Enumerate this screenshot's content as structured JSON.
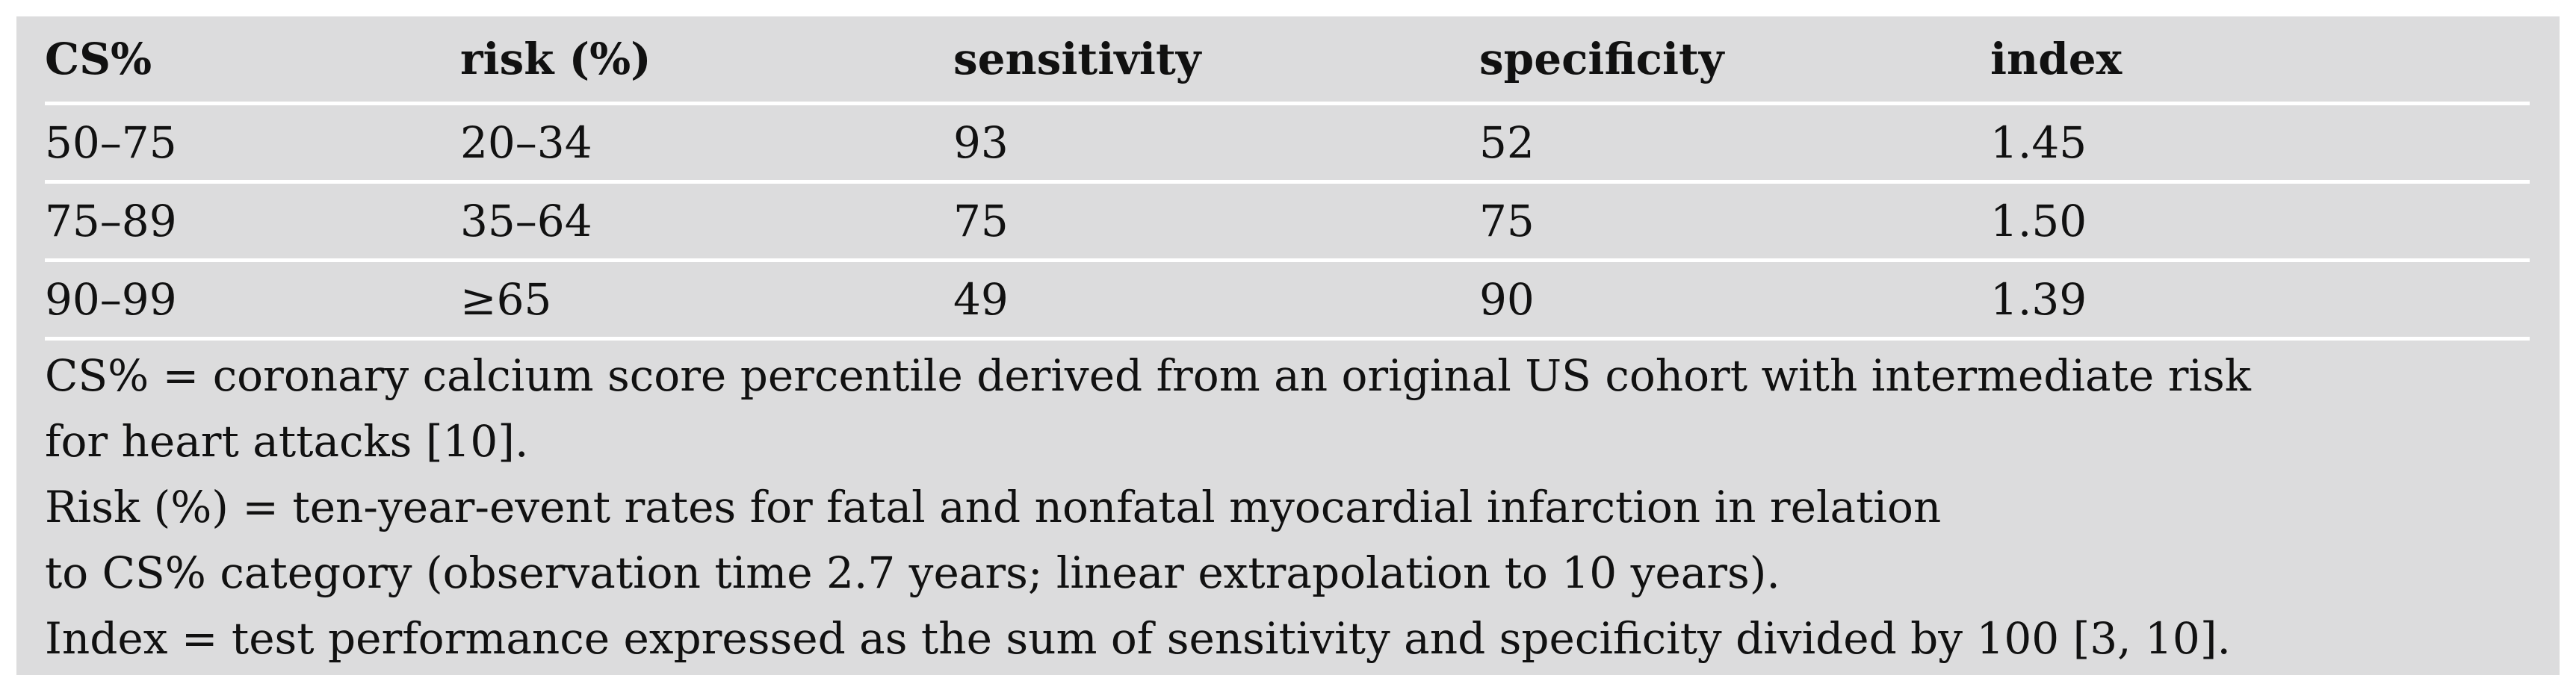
{
  "table": {
    "headers": [
      "CS%",
      "risk (%)",
      "sensitivity",
      "specificity",
      "index"
    ],
    "rows": [
      [
        "50–75",
        "20–34",
        "93",
        "52",
        "1.45"
      ],
      [
        "75–89",
        "35–64",
        "75",
        "75",
        "1.50"
      ],
      [
        "90–99",
        "≥65",
        "49",
        "90",
        "1.39"
      ]
    ]
  },
  "notes": [
    "CS% = coronary calcium score percentile derived from an original US cohort with intermediate risk",
    "for heart attacks [10].",
    "Risk (%) = ten-year-event rates for fatal and nonfatal myocardial infarction in relation",
    "to CS% category (observation time 2.7 years; linear extrapolation to 10 years).",
    "Index = test performance expressed as the sum of sensitivity and specificity divided by 100 [3, 10]."
  ]
}
